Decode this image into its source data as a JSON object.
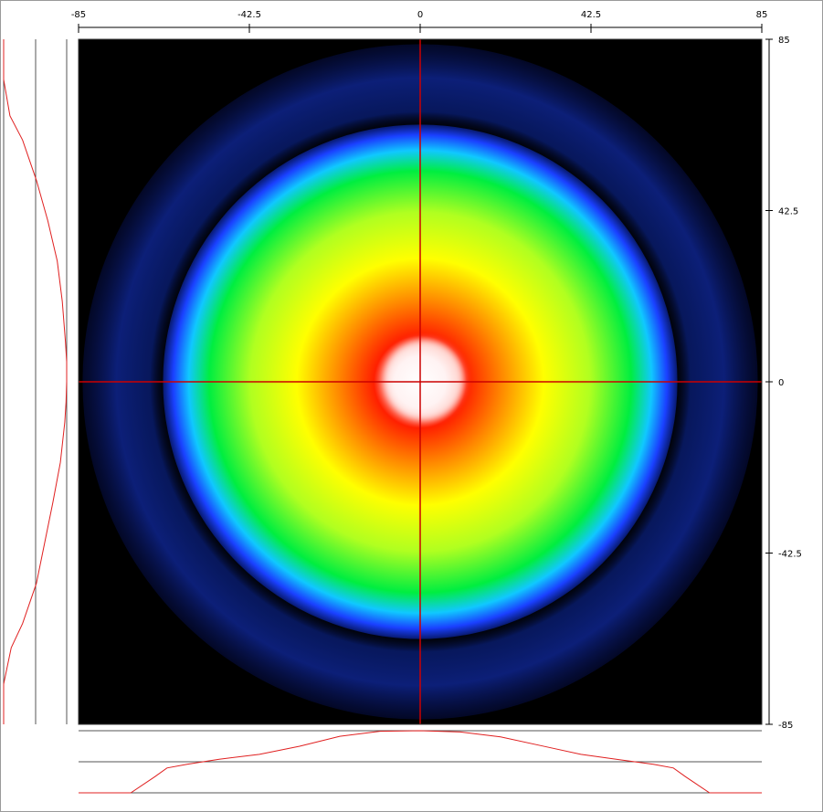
{
  "chart_data": {
    "type": "heatmap",
    "title": "",
    "xlabel": "",
    "ylabel": "",
    "xlim": [
      -85,
      85
    ],
    "ylim": [
      -85,
      85
    ],
    "x_ticks": [
      -85,
      -42.5,
      0,
      42.5,
      85
    ],
    "y_ticks": [
      85,
      42.5,
      0,
      -42.5,
      -85
    ],
    "x_tick_labels": [
      "-85",
      "-42.5",
      "0",
      "42.5",
      "85"
    ],
    "y_tick_labels": [
      "85",
      "42.5",
      "0",
      "-42.5",
      "-85"
    ],
    "colormap": [
      "#000000",
      "#0a1a70",
      "#1e40ff",
      "#20c0ff",
      "#00f040",
      "#a8ff20",
      "#ffff00",
      "#ff8000",
      "#ff2000",
      "#ffffff"
    ],
    "crosshair": {
      "x": 0,
      "y": 0,
      "color": "#cc0000"
    },
    "beam": {
      "center": [
        0,
        0
      ],
      "main_radius": 64,
      "halo_radius": 84,
      "core_radius": 10
    },
    "x_profile": {
      "x": [
        -85,
        -72,
        -66,
        -63,
        -58,
        -50,
        -40,
        -30,
        -20,
        -10,
        0,
        10,
        20,
        30,
        40,
        50,
        58,
        63,
        66,
        72,
        85
      ],
      "values": [
        0.0,
        0.0,
        0.26,
        0.4,
        0.46,
        0.54,
        0.62,
        0.75,
        0.91,
        0.99,
        1.0,
        0.98,
        0.9,
        0.76,
        0.62,
        0.53,
        0.46,
        0.4,
        0.26,
        0.0,
        0.0
      ]
    },
    "y_profile": {
      "y": [
        85,
        75,
        66,
        60,
        50,
        40,
        30,
        20,
        10,
        5,
        0,
        -5,
        -10,
        -20,
        -30,
        -40,
        -50,
        -60,
        -66,
        -75,
        -85
      ],
      "values": [
        0.0,
        0.0,
        0.1,
        0.3,
        0.52,
        0.7,
        0.85,
        0.93,
        0.98,
        1.0,
        1.0,
        0.99,
        0.97,
        0.9,
        0.78,
        0.65,
        0.52,
        0.3,
        0.12,
        0.0,
        0.0
      ]
    }
  }
}
